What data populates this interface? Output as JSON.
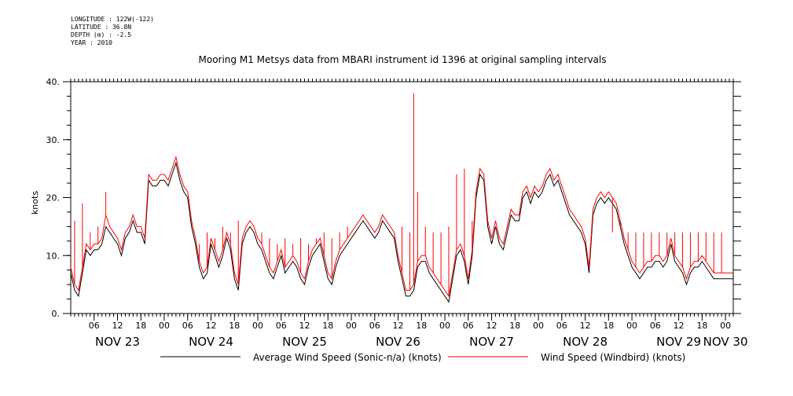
{
  "metadata": {
    "longitude": "LONGITUDE : 122W(-122)",
    "latitude": "LATITUDE : 36.8N",
    "depth": "DEPTH (m) : -2.5",
    "year": "YEAR : 2010"
  },
  "chart_data": {
    "type": "line",
    "title": "Mooring M1 Metsys data from MBARI instrument id 1396 at original sampling intervals",
    "ylabel": "knots",
    "xlabel": "",
    "ylim": [
      0,
      40
    ],
    "yticks": [
      0,
      10,
      20,
      30,
      40
    ],
    "ytick_labels": [
      "0.",
      "10.",
      "20.",
      "30.",
      "40."
    ],
    "xlim_hours": [
      0,
      170
    ],
    "x_hour_ticks": [
      "06",
      "12",
      "18",
      "00",
      "06",
      "12",
      "18",
      "00",
      "06",
      "12",
      "18",
      "00",
      "06",
      "12",
      "18",
      "00",
      "06",
      "12",
      "18",
      "00",
      "06",
      "12",
      "18",
      "00",
      "06",
      "12",
      "18",
      "00"
    ],
    "x_hour_tick_positions": [
      6,
      12,
      18,
      24,
      30,
      36,
      42,
      48,
      54,
      60,
      66,
      72,
      78,
      84,
      90,
      96,
      102,
      108,
      114,
      120,
      126,
      132,
      138,
      144,
      150,
      156,
      162,
      168
    ],
    "date_labels": [
      {
        "label": "NOV 23",
        "hour": 12
      },
      {
        "label": "NOV 24",
        "hour": 36
      },
      {
        "label": "NOV 25",
        "hour": 60
      },
      {
        "label": "NOV 26",
        "hour": 84
      },
      {
        "label": "NOV 27",
        "hour": 108
      },
      {
        "label": "NOV 28",
        "hour": 132
      },
      {
        "label": "NOV 29",
        "hour": 156
      },
      {
        "label": "NOV 30",
        "hour": 168
      }
    ],
    "grid": false,
    "legend_position": "bottom",
    "series": [
      {
        "name": "Average Wind Speed (Sonic-n/a) (knots)",
        "color": "#000000",
        "x": [
          0,
          1,
          2,
          3,
          4,
          5,
          6,
          7,
          8,
          9,
          10,
          11,
          12,
          13,
          14,
          15,
          16,
          17,
          18,
          19,
          20,
          21,
          22,
          23,
          24,
          25,
          26,
          27,
          28,
          29,
          30,
          31,
          32,
          33,
          34,
          35,
          36,
          37,
          38,
          39,
          40,
          41,
          42,
          43,
          44,
          45,
          46,
          47,
          48,
          49,
          50,
          51,
          52,
          53,
          54,
          55,
          56,
          57,
          58,
          59,
          60,
          61,
          62,
          63,
          64,
          65,
          66,
          67,
          68,
          69,
          70,
          71,
          72,
          73,
          74,
          75,
          76,
          77,
          78,
          79,
          80,
          81,
          82,
          83,
          84,
          85,
          86,
          87,
          88,
          89,
          90,
          91,
          92,
          93,
          94,
          95,
          96,
          97,
          98,
          99,
          100,
          101,
          102,
          103,
          104,
          105,
          106,
          107,
          108,
          109,
          110,
          111,
          112,
          113,
          114,
          115,
          116,
          117,
          118,
          119,
          120,
          121,
          122,
          123,
          124,
          125,
          126,
          127,
          128,
          129,
          130,
          131,
          132,
          133,
          134,
          135,
          136,
          137,
          138,
          139,
          140,
          141,
          142,
          143,
          144,
          145,
          146,
          147,
          148,
          149,
          150,
          151,
          152,
          153,
          154,
          155,
          156,
          157,
          158,
          159,
          160,
          161,
          162,
          163,
          164,
          165,
          166,
          167,
          168,
          169,
          170
        ],
        "values": [
          7,
          4,
          3,
          7,
          11,
          10,
          11,
          11,
          12,
          15,
          14,
          13,
          12,
          10,
          13,
          14,
          16,
          14,
          14,
          12,
          23,
          22,
          22,
          23,
          23,
          22,
          24,
          26,
          23,
          21,
          20,
          15,
          12,
          8,
          6,
          7,
          12,
          10,
          8,
          10,
          13,
          11,
          6,
          4,
          12,
          14,
          15,
          14,
          12,
          11,
          9,
          7,
          6,
          8,
          10,
          7,
          8,
          9,
          8,
          6,
          5,
          8,
          10,
          11,
          12,
          9,
          6,
          5,
          8,
          10,
          11,
          12,
          13,
          14,
          15,
          16,
          15,
          14,
          13,
          14,
          16,
          15,
          14,
          13,
          9,
          6,
          3,
          3,
          4,
          8,
          9,
          9,
          7,
          6,
          5,
          4,
          3,
          2,
          6,
          10,
          11,
          9,
          5,
          10,
          20,
          24,
          23,
          15,
          12,
          15,
          12,
          11,
          14,
          17,
          16,
          16,
          20,
          21,
          19,
          21,
          20,
          21,
          23,
          24,
          22,
          23,
          21,
          19,
          17,
          16,
          15,
          14,
          12,
          7,
          17,
          19,
          20,
          19,
          20,
          19,
          18,
          15,
          12,
          10,
          8,
          7,
          6,
          7,
          8,
          8,
          9,
          9,
          8,
          9,
          12,
          9,
          8,
          7,
          5,
          7,
          8,
          8,
          9,
          8,
          7,
          6,
          6,
          6,
          6,
          6,
          6
        ],
        "line_width": 1
      },
      {
        "name": "Wind Speed (Windbird) (knots)",
        "color": "#ff0000",
        "x": [
          0,
          1,
          2,
          3,
          4,
          5,
          6,
          7,
          8,
          9,
          10,
          11,
          12,
          13,
          14,
          15,
          16,
          17,
          18,
          19,
          20,
          21,
          22,
          23,
          24,
          25,
          26,
          27,
          28,
          29,
          30,
          31,
          32,
          33,
          34,
          35,
          36,
          37,
          38,
          39,
          40,
          41,
          42,
          43,
          44,
          45,
          46,
          47,
          48,
          49,
          50,
          51,
          52,
          53,
          54,
          55,
          56,
          57,
          58,
          59,
          60,
          61,
          62,
          63,
          64,
          65,
          66,
          67,
          68,
          69,
          70,
          71,
          72,
          73,
          74,
          75,
          76,
          77,
          78,
          79,
          80,
          81,
          82,
          83,
          84,
          85,
          86,
          87,
          88,
          89,
          90,
          91,
          92,
          93,
          94,
          95,
          96,
          97,
          98,
          99,
          100,
          101,
          102,
          103,
          104,
          105,
          106,
          107,
          108,
          109,
          110,
          111,
          112,
          113,
          114,
          115,
          116,
          117,
          118,
          119,
          120,
          121,
          122,
          123,
          124,
          125,
          126,
          127,
          128,
          129,
          130,
          131,
          132,
          133,
          134,
          135,
          136,
          137,
          138,
          139,
          140,
          141,
          142,
          143,
          144,
          145,
          146,
          147,
          148,
          149,
          150,
          151,
          152,
          153,
          154,
          155,
          156,
          157,
          158,
          159,
          160,
          161,
          162,
          163,
          164,
          165,
          166,
          167,
          168,
          169,
          170
        ],
        "values": [
          8,
          5,
          4,
          8,
          12,
          11,
          12,
          12,
          13,
          17,
          15,
          14,
          13,
          11,
          14,
          15,
          17,
          15,
          15,
          13,
          24,
          23,
          23,
          24,
          24,
          23,
          25,
          27,
          24,
          22,
          21,
          16,
          13,
          9,
          7,
          8,
          13,
          11,
          9,
          11,
          14,
          12,
          7,
          5,
          13,
          15,
          16,
          15,
          13,
          12,
          10,
          8,
          7,
          9,
          11,
          8,
          9,
          10,
          9,
          7,
          6,
          9,
          11,
          12,
          13,
          10,
          7,
          6,
          9,
          11,
          12,
          13,
          14,
          15,
          16,
          17,
          16,
          15,
          14,
          15,
          17,
          16,
          15,
          14,
          10,
          7,
          4,
          4,
          5,
          9,
          10,
          10,
          8,
          7,
          6,
          5,
          4,
          3,
          7,
          11,
          12,
          10,
          6,
          11,
          21,
          25,
          24,
          16,
          13,
          16,
          13,
          12,
          15,
          18,
          17,
          17,
          21,
          22,
          20,
          22,
          21,
          22,
          24,
          25,
          23,
          24,
          22,
          20,
          18,
          17,
          16,
          15,
          13,
          8,
          18,
          20,
          21,
          20,
          21,
          20,
          19,
          16,
          13,
          11,
          9,
          8,
          7,
          8,
          9,
          9,
          10,
          10,
          9,
          10,
          13,
          10,
          9,
          8,
          6,
          8,
          9,
          9,
          10,
          9,
          8,
          7,
          7,
          7,
          7,
          7,
          7
        ],
        "spikes": [
          {
            "hour": 1,
            "value": 16
          },
          {
            "hour": 3,
            "value": 19
          },
          {
            "hour": 5,
            "value": 14
          },
          {
            "hour": 7,
            "value": 15
          },
          {
            "hour": 9,
            "value": 21
          },
          {
            "hour": 31,
            "value": 16
          },
          {
            "hour": 33,
            "value": 12
          },
          {
            "hour": 35,
            "value": 14
          },
          {
            "hour": 37,
            "value": 13
          },
          {
            "hour": 39,
            "value": 15
          },
          {
            "hour": 41,
            "value": 14
          },
          {
            "hour": 43,
            "value": 16
          },
          {
            "hour": 45,
            "value": 15
          },
          {
            "hour": 49,
            "value": 14
          },
          {
            "hour": 51,
            "value": 13
          },
          {
            "hour": 53,
            "value": 12
          },
          {
            "hour": 55,
            "value": 13
          },
          {
            "hour": 57,
            "value": 12
          },
          {
            "hour": 59,
            "value": 13
          },
          {
            "hour": 61,
            "value": 12
          },
          {
            "hour": 63,
            "value": 13
          },
          {
            "hour": 65,
            "value": 14
          },
          {
            "hour": 67,
            "value": 13
          },
          {
            "hour": 69,
            "value": 14
          },
          {
            "hour": 71,
            "value": 15
          },
          {
            "hour": 85,
            "value": 15
          },
          {
            "hour": 87,
            "value": 14
          },
          {
            "hour": 88,
            "value": 38
          },
          {
            "hour": 89,
            "value": 21
          },
          {
            "hour": 91,
            "value": 15
          },
          {
            "hour": 93,
            "value": 14
          },
          {
            "hour": 95,
            "value": 14
          },
          {
            "hour": 97,
            "value": 15
          },
          {
            "hour": 99,
            "value": 24
          },
          {
            "hour": 101,
            "value": 25
          },
          {
            "hour": 103,
            "value": 16
          },
          {
            "hour": 139,
            "value": 14
          },
          {
            "hour": 141,
            "value": 15
          },
          {
            "hour": 143,
            "value": 14
          },
          {
            "hour": 145,
            "value": 14
          },
          {
            "hour": 147,
            "value": 14
          },
          {
            "hour": 149,
            "value": 14
          },
          {
            "hour": 151,
            "value": 14
          },
          {
            "hour": 153,
            "value": 14
          },
          {
            "hour": 155,
            "value": 14
          },
          {
            "hour": 157,
            "value": 14
          },
          {
            "hour": 159,
            "value": 14
          },
          {
            "hour": 161,
            "value": 14
          },
          {
            "hour": 163,
            "value": 14
          },
          {
            "hour": 165,
            "value": 14
          },
          {
            "hour": 167,
            "value": 14
          }
        ],
        "line_width": 1
      }
    ],
    "legend": [
      {
        "label": "Average Wind Speed (Sonic-n/a) (knots)",
        "color": "#000000"
      },
      {
        "label": "Wind Speed (Windbird) (knots)",
        "color": "#ff0000"
      }
    ]
  }
}
